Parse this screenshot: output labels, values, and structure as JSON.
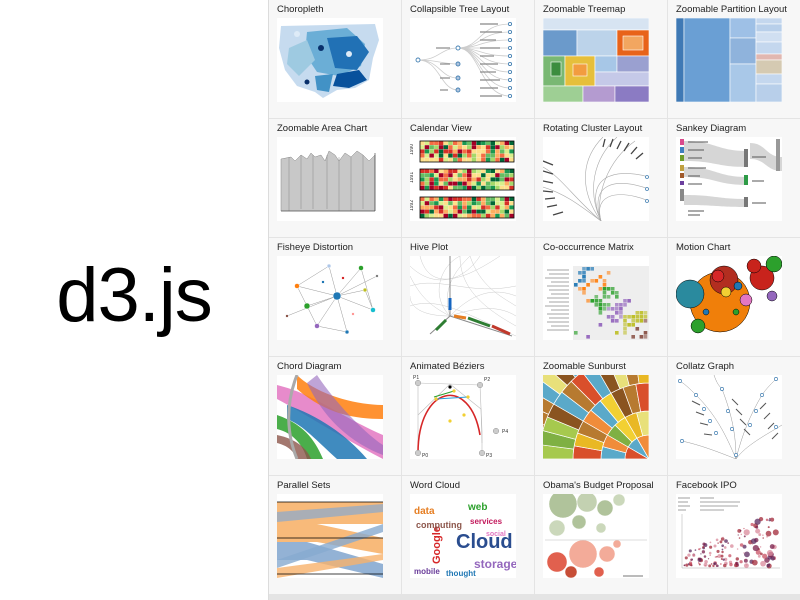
{
  "brand": {
    "title": "d3.js"
  },
  "gallery": {
    "tiles": [
      {
        "label": "Choropleth",
        "icon": "choropleth-thumbnail"
      },
      {
        "label": "Collapsible Tree Layout",
        "icon": "collapsible-tree-thumbnail"
      },
      {
        "label": "Zoomable Treemap",
        "icon": "zoomable-treemap-thumbnail"
      },
      {
        "label": "Zoomable Partition Layout",
        "icon": "zoomable-partition-thumbnail"
      },
      {
        "label": "Zoomable Area Chart",
        "icon": "zoomable-area-chart-thumbnail"
      },
      {
        "label": "Calendar View",
        "icon": "calendar-view-thumbnail"
      },
      {
        "label": "Rotating Cluster Layout",
        "icon": "rotating-cluster-thumbnail"
      },
      {
        "label": "Sankey Diagram",
        "icon": "sankey-diagram-thumbnail"
      },
      {
        "label": "Fisheye Distortion",
        "icon": "fisheye-distortion-thumbnail"
      },
      {
        "label": "Hive Plot",
        "icon": "hive-plot-thumbnail"
      },
      {
        "label": "Co-occurrence Matrix",
        "icon": "co-occurrence-matrix-thumbnail"
      },
      {
        "label": "Motion Chart",
        "icon": "motion-chart-thumbnail"
      },
      {
        "label": "Chord Diagram",
        "icon": "chord-diagram-thumbnail"
      },
      {
        "label": "Animated Béziers",
        "icon": "animated-beziers-thumbnail"
      },
      {
        "label": "Zoomable Sunburst",
        "icon": "zoomable-sunburst-thumbnail"
      },
      {
        "label": "Collatz Graph",
        "icon": "collatz-graph-thumbnail"
      },
      {
        "label": "Parallel Sets",
        "icon": "parallel-sets-thumbnail"
      },
      {
        "label": "Word Cloud",
        "icon": "word-cloud-thumbnail"
      },
      {
        "label": "Obama's Budget Proposal",
        "icon": "budget-proposal-thumbnail"
      },
      {
        "label": "Facebook IPO",
        "icon": "facebook-ipo-thumbnail"
      }
    ]
  },
  "thumbnail_text": {
    "word_cloud": [
      "Cloud",
      "Google",
      "storage",
      "data",
      "web",
      "computing",
      "services",
      "thought",
      "mobile",
      "social"
    ],
    "calendar_years": [
      "1990",
      "1991",
      "1992"
    ],
    "bezier_points": [
      "P0",
      "P1",
      "P2",
      "P3",
      "P4"
    ],
    "colors": {
      "choropleth": "#2a6db3",
      "treemap_orange": "#e8631a",
      "partition_blue": "#6a9fd4",
      "calendar_red": "#c62a2a",
      "calendar_green": "#2e9b47",
      "motion_orange": "#f07f0a",
      "motion_red": "#c8231c",
      "sunburst_yellow": "#f2d033",
      "sunburst_brown": "#8a5420",
      "budget_green": "#a3b98a",
      "budget_red": "#de4f3b",
      "ipo_red": "#a22838",
      "parallel_orange": "#f7b26b",
      "parallel_blue": "#87aad0"
    }
  }
}
